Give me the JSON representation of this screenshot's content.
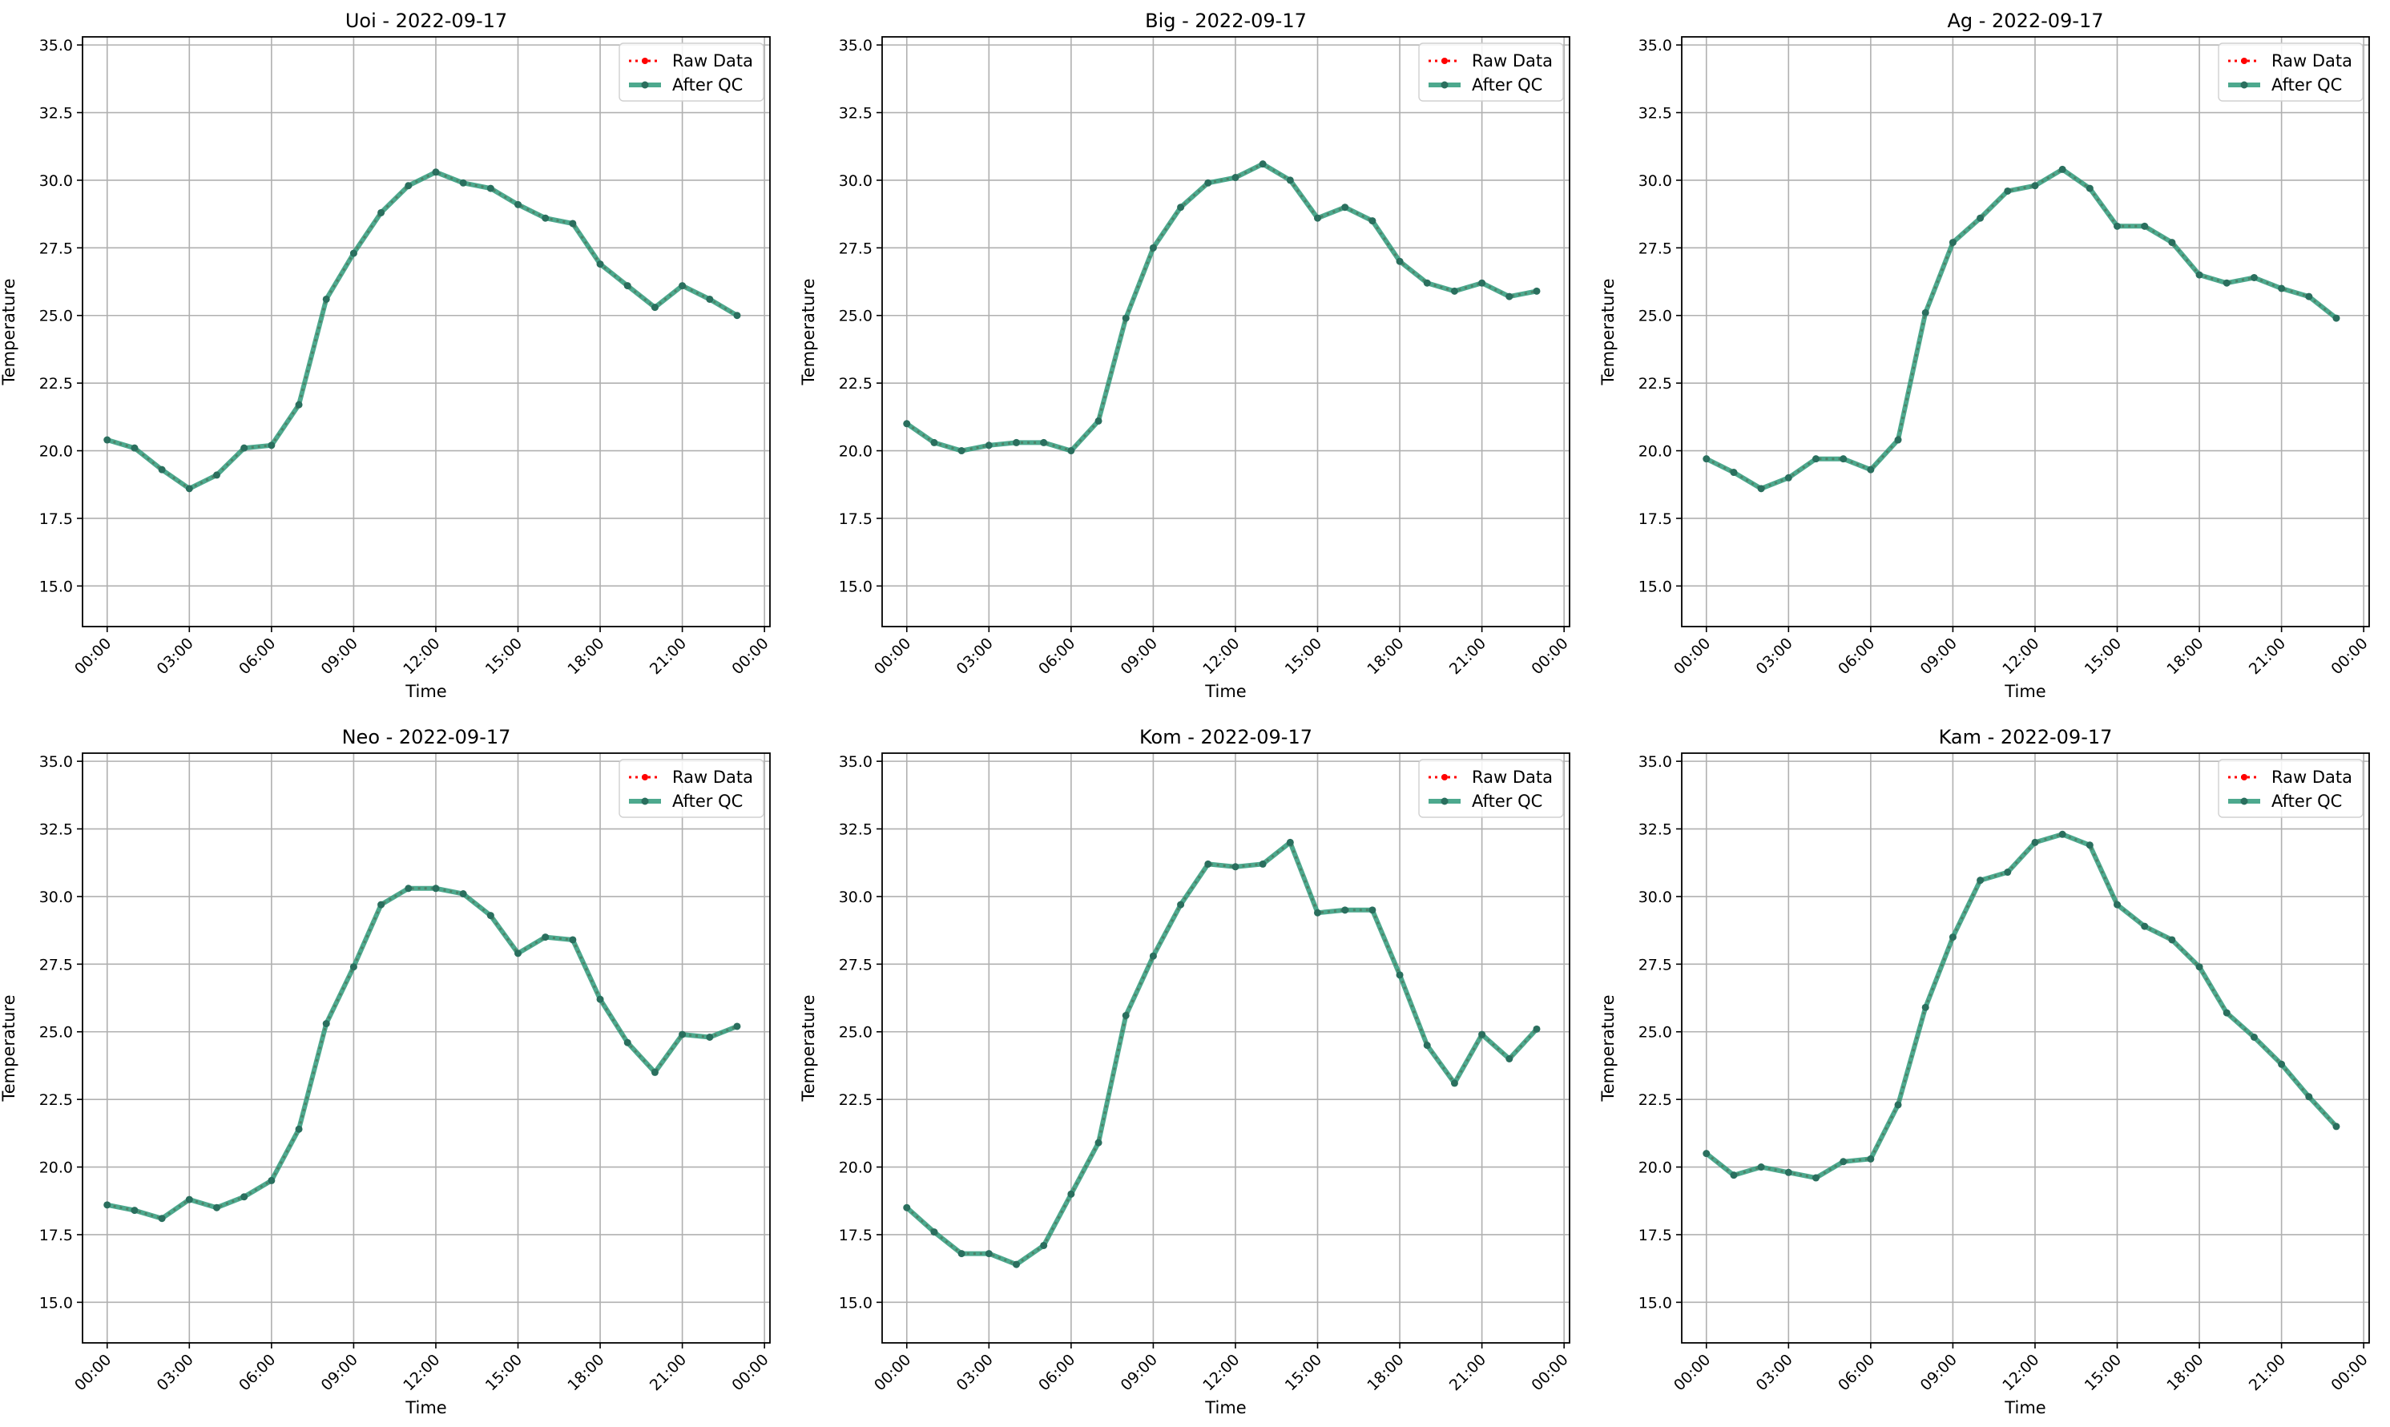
{
  "chart_data": [
    {
      "type": "line",
      "title": "Uoi - 2022-09-17",
      "xlabel": "Time",
      "ylabel": "Temperature",
      "x": [
        "00:00",
        "01:00",
        "02:00",
        "03:00",
        "04:00",
        "05:00",
        "06:00",
        "07:00",
        "08:00",
        "09:00",
        "10:00",
        "11:00",
        "12:00",
        "13:00",
        "14:00",
        "15:00",
        "16:00",
        "17:00",
        "18:00",
        "19:00",
        "20:00",
        "21:00",
        "22:00",
        "23:00"
      ],
      "series": [
        {
          "name": "Raw Data",
          "values": [
            20.4,
            20.1,
            19.3,
            18.6,
            19.1,
            20.1,
            20.2,
            21.7,
            25.6,
            27.3,
            28.8,
            29.8,
            30.3,
            29.9,
            29.7,
            29.1,
            28.6,
            28.4,
            26.9,
            26.1,
            25.3,
            26.1,
            25.6,
            25.0
          ]
        },
        {
          "name": "After QC",
          "values": [
            20.4,
            20.1,
            19.3,
            18.6,
            19.1,
            20.1,
            20.2,
            21.7,
            25.6,
            27.3,
            28.8,
            29.8,
            30.3,
            29.9,
            29.7,
            29.1,
            28.6,
            28.4,
            26.9,
            26.1,
            25.3,
            26.1,
            25.6,
            25.0
          ]
        }
      ],
      "ylim": [
        13.5,
        35.3
      ],
      "xlim_hours": [
        -0.9,
        24.2
      ],
      "xticks": [
        "00:00",
        "03:00",
        "06:00",
        "09:00",
        "12:00",
        "15:00",
        "18:00",
        "21:00",
        "00:00"
      ],
      "yticks": [
        "15.0",
        "17.5",
        "20.0",
        "22.5",
        "25.0",
        "27.5",
        "30.0",
        "32.5",
        "35.0"
      ],
      "grid": true,
      "legend": "top-right"
    },
    {
      "type": "line",
      "title": "Big - 2022-09-17",
      "xlabel": "Time",
      "ylabel": "Temperature",
      "x": [
        "00:00",
        "01:00",
        "02:00",
        "03:00",
        "04:00",
        "05:00",
        "06:00",
        "07:00",
        "08:00",
        "09:00",
        "10:00",
        "11:00",
        "12:00",
        "13:00",
        "14:00",
        "15:00",
        "16:00",
        "17:00",
        "18:00",
        "19:00",
        "20:00",
        "21:00",
        "22:00",
        "23:00"
      ],
      "series": [
        {
          "name": "Raw Data",
          "values": [
            21.0,
            20.3,
            20.0,
            20.2,
            20.3,
            20.3,
            20.0,
            21.1,
            24.9,
            27.5,
            29.0,
            29.9,
            30.1,
            30.6,
            30.0,
            28.6,
            29.0,
            28.5,
            27.0,
            26.2,
            25.9,
            26.2,
            25.7,
            25.9
          ]
        },
        {
          "name": "After QC",
          "values": [
            21.0,
            20.3,
            20.0,
            20.2,
            20.3,
            20.3,
            20.0,
            21.1,
            24.9,
            27.5,
            29.0,
            29.9,
            30.1,
            30.6,
            30.0,
            28.6,
            29.0,
            28.5,
            27.0,
            26.2,
            25.9,
            26.2,
            25.7,
            25.9
          ]
        }
      ],
      "ylim": [
        13.5,
        35.3
      ],
      "xlim_hours": [
        -0.9,
        24.2
      ],
      "xticks": [
        "00:00",
        "03:00",
        "06:00",
        "09:00",
        "12:00",
        "15:00",
        "18:00",
        "21:00",
        "00:00"
      ],
      "yticks": [
        "15.0",
        "17.5",
        "20.0",
        "22.5",
        "25.0",
        "27.5",
        "30.0",
        "32.5",
        "35.0"
      ],
      "grid": true,
      "legend": "top-right"
    },
    {
      "type": "line",
      "title": "Ag - 2022-09-17",
      "xlabel": "Time",
      "ylabel": "Temperature",
      "x": [
        "00:00",
        "01:00",
        "02:00",
        "03:00",
        "04:00",
        "05:00",
        "06:00",
        "07:00",
        "08:00",
        "09:00",
        "10:00",
        "11:00",
        "12:00",
        "13:00",
        "14:00",
        "15:00",
        "16:00",
        "17:00",
        "18:00",
        "19:00",
        "20:00",
        "21:00",
        "22:00",
        "23:00"
      ],
      "series": [
        {
          "name": "Raw Data",
          "values": [
            19.7,
            19.2,
            18.6,
            19.0,
            19.7,
            19.7,
            19.3,
            20.4,
            25.1,
            27.7,
            28.6,
            29.6,
            29.8,
            30.4,
            29.7,
            28.3,
            28.3,
            27.7,
            26.5,
            26.2,
            26.4,
            26.0,
            25.7,
            24.9
          ]
        },
        {
          "name": "After QC",
          "values": [
            19.7,
            19.2,
            18.6,
            19.0,
            19.7,
            19.7,
            19.3,
            20.4,
            25.1,
            27.7,
            28.6,
            29.6,
            29.8,
            30.4,
            29.7,
            28.3,
            28.3,
            27.7,
            26.5,
            26.2,
            26.4,
            26.0,
            25.7,
            24.9
          ]
        }
      ],
      "ylim": [
        13.5,
        35.3
      ],
      "xlim_hours": [
        -0.9,
        24.2
      ],
      "xticks": [
        "00:00",
        "03:00",
        "06:00",
        "09:00",
        "12:00",
        "15:00",
        "18:00",
        "21:00",
        "00:00"
      ],
      "yticks": [
        "15.0",
        "17.5",
        "20.0",
        "22.5",
        "25.0",
        "27.5",
        "30.0",
        "32.5",
        "35.0"
      ],
      "grid": true,
      "legend": "top-right"
    },
    {
      "type": "line",
      "title": "Neo - 2022-09-17",
      "xlabel": "Time",
      "ylabel": "Temperature",
      "x": [
        "00:00",
        "01:00",
        "02:00",
        "03:00",
        "04:00",
        "05:00",
        "06:00",
        "07:00",
        "08:00",
        "09:00",
        "10:00",
        "11:00",
        "12:00",
        "13:00",
        "14:00",
        "15:00",
        "16:00",
        "17:00",
        "18:00",
        "19:00",
        "20:00",
        "21:00",
        "22:00",
        "23:00"
      ],
      "series": [
        {
          "name": "Raw Data",
          "values": [
            18.6,
            18.4,
            18.1,
            18.8,
            18.5,
            18.9,
            19.5,
            21.4,
            25.3,
            27.4,
            29.7,
            30.3,
            30.3,
            30.1,
            29.3,
            27.9,
            28.5,
            28.4,
            26.2,
            24.6,
            23.5,
            24.9,
            24.8,
            25.2
          ]
        },
        {
          "name": "After QC",
          "values": [
            18.6,
            18.4,
            18.1,
            18.8,
            18.5,
            18.9,
            19.5,
            21.4,
            25.3,
            27.4,
            29.7,
            30.3,
            30.3,
            30.1,
            29.3,
            27.9,
            28.5,
            28.4,
            26.2,
            24.6,
            23.5,
            24.9,
            24.8,
            25.2
          ]
        }
      ],
      "ylim": [
        13.5,
        35.3
      ],
      "xlim_hours": [
        -0.9,
        24.2
      ],
      "xticks": [
        "00:00",
        "03:00",
        "06:00",
        "09:00",
        "12:00",
        "15:00",
        "18:00",
        "21:00",
        "00:00"
      ],
      "yticks": [
        "15.0",
        "17.5",
        "20.0",
        "22.5",
        "25.0",
        "27.5",
        "30.0",
        "32.5",
        "35.0"
      ],
      "grid": true,
      "legend": "top-right"
    },
    {
      "type": "line",
      "title": "Kom - 2022-09-17",
      "xlabel": "Time",
      "ylabel": "Temperature",
      "x": [
        "00:00",
        "01:00",
        "02:00",
        "03:00",
        "04:00",
        "05:00",
        "06:00",
        "07:00",
        "08:00",
        "09:00",
        "10:00",
        "11:00",
        "12:00",
        "13:00",
        "14:00",
        "15:00",
        "16:00",
        "17:00",
        "18:00",
        "19:00",
        "20:00",
        "21:00",
        "22:00",
        "23:00"
      ],
      "series": [
        {
          "name": "Raw Data",
          "values": [
            18.5,
            17.6,
            16.8,
            16.8,
            16.4,
            17.1,
            19.0,
            20.9,
            25.6,
            27.8,
            29.7,
            31.2,
            31.1,
            31.2,
            32.0,
            29.4,
            29.5,
            29.5,
            27.1,
            24.5,
            23.1,
            24.9,
            24.0,
            25.1
          ]
        },
        {
          "name": "After QC",
          "values": [
            18.5,
            17.6,
            16.8,
            16.8,
            16.4,
            17.1,
            19.0,
            20.9,
            25.6,
            27.8,
            29.7,
            31.2,
            31.1,
            31.2,
            32.0,
            29.4,
            29.5,
            29.5,
            27.1,
            24.5,
            23.1,
            24.9,
            24.0,
            25.1
          ]
        }
      ],
      "ylim": [
        13.5,
        35.3
      ],
      "xlim_hours": [
        -0.9,
        24.2
      ],
      "xticks": [
        "00:00",
        "03:00",
        "06:00",
        "09:00",
        "12:00",
        "15:00",
        "18:00",
        "21:00",
        "00:00"
      ],
      "yticks": [
        "15.0",
        "17.5",
        "20.0",
        "22.5",
        "25.0",
        "27.5",
        "30.0",
        "32.5",
        "35.0"
      ],
      "grid": true,
      "legend": "top-right"
    },
    {
      "type": "line",
      "title": "Kam - 2022-09-17",
      "xlabel": "Time",
      "ylabel": "Temperature",
      "x": [
        "00:00",
        "01:00",
        "02:00",
        "03:00",
        "04:00",
        "05:00",
        "06:00",
        "07:00",
        "08:00",
        "09:00",
        "10:00",
        "11:00",
        "12:00",
        "13:00",
        "14:00",
        "15:00",
        "16:00",
        "17:00",
        "18:00",
        "19:00",
        "20:00",
        "21:00",
        "22:00",
        "23:00"
      ],
      "series": [
        {
          "name": "Raw Data",
          "values": [
            20.5,
            19.7,
            20.0,
            19.8,
            19.6,
            20.2,
            20.3,
            22.3,
            25.9,
            28.5,
            30.6,
            30.9,
            32.0,
            32.3,
            31.9,
            29.7,
            28.9,
            28.4,
            27.4,
            25.7,
            24.8,
            23.8,
            22.6,
            21.5
          ]
        },
        {
          "name": "After QC",
          "values": [
            20.5,
            19.7,
            20.0,
            19.8,
            19.6,
            20.2,
            20.3,
            22.3,
            25.9,
            28.5,
            30.6,
            30.9,
            32.0,
            32.3,
            31.9,
            29.7,
            28.9,
            28.4,
            27.4,
            25.7,
            24.8,
            23.8,
            22.6,
            21.5
          ]
        }
      ],
      "ylim": [
        13.5,
        35.3
      ],
      "xlim_hours": [
        -0.9,
        24.2
      ],
      "xticks": [
        "00:00",
        "03:00",
        "06:00",
        "09:00",
        "12:00",
        "15:00",
        "18:00",
        "21:00",
        "00:00"
      ],
      "yticks": [
        "15.0",
        "17.5",
        "20.0",
        "22.5",
        "25.0",
        "27.5",
        "30.0",
        "32.5",
        "35.0"
      ],
      "grid": true,
      "legend": "top-right"
    }
  ],
  "colors": {
    "raw": "#ff0000",
    "qc_line": "#2e9a7a",
    "qc_marker": "#2a6f5e",
    "grid": "#b0b0b0",
    "axis": "#000000"
  }
}
